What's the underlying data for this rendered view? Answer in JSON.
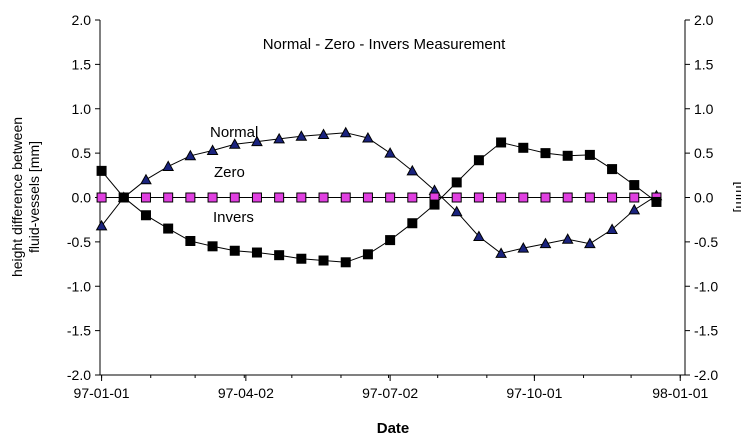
{
  "chart_data": {
    "type": "line",
    "title": "Normal - Zero - Invers Measurement",
    "xlabel": "Date",
    "ylabel_left": [
      "height difference between",
      "fluid-vessels [mm]"
    ],
    "ylabel_right": "[mm]",
    "ylim": [
      -2.0,
      2.0
    ],
    "yticks": [
      "-2.0",
      "-1.5",
      "-1.0",
      "-0.5",
      "0.0",
      "0.5",
      "1.0",
      "1.5",
      "2.0"
    ],
    "xlim": [
      "1996-12-31",
      "1998-01-04"
    ],
    "xticks": [
      "97-01-01",
      "97-04-02",
      "97-07-02",
      "97-10-01",
      "98-01-01"
    ],
    "grid": false,
    "annotations": [
      "Normal",
      "Zero",
      "Invers"
    ],
    "series": [
      {
        "name": "Normal",
        "marker": "triangle",
        "color": "#1a237e",
        "points": [
          [
            "1997-01-01",
            -0.32
          ],
          [
            "1997-01-15",
            0.0
          ],
          [
            "1997-01-29",
            0.2
          ],
          [
            "1997-02-12",
            0.35
          ],
          [
            "1997-02-26",
            0.47
          ],
          [
            "1997-03-12",
            0.53
          ],
          [
            "1997-03-26",
            0.6
          ],
          [
            "1997-04-09",
            0.63
          ],
          [
            "1997-04-23",
            0.66
          ],
          [
            "1997-05-07",
            0.69
          ],
          [
            "1997-05-21",
            0.71
          ],
          [
            "1997-06-04",
            0.73
          ],
          [
            "1997-06-18",
            0.67
          ],
          [
            "1997-07-02",
            0.5
          ],
          [
            "1997-07-16",
            0.3
          ],
          [
            "1997-07-30",
            0.08
          ],
          [
            "1997-08-13",
            -0.16
          ],
          [
            "1997-08-27",
            -0.44
          ],
          [
            "1997-09-10",
            -0.63
          ],
          [
            "1997-09-24",
            -0.57
          ],
          [
            "1997-10-08",
            -0.52
          ],
          [
            "1997-10-22",
            -0.47
          ],
          [
            "1997-11-05",
            -0.52
          ],
          [
            "1997-11-19",
            -0.36
          ],
          [
            "1997-12-03",
            -0.14
          ],
          [
            "1997-12-17",
            0.02
          ]
        ]
      },
      {
        "name": "Zero",
        "marker": "square",
        "color": "#e040e0",
        "points": [
          [
            "1997-01-01",
            0.0
          ],
          [
            "1997-01-15",
            0.0
          ],
          [
            "1997-01-29",
            0.0
          ],
          [
            "1997-02-12",
            0.0
          ],
          [
            "1997-02-26",
            0.0
          ],
          [
            "1997-03-12",
            0.0
          ],
          [
            "1997-03-26",
            0.0
          ],
          [
            "1997-04-09",
            0.0
          ],
          [
            "1997-04-23",
            0.0
          ],
          [
            "1997-05-07",
            0.0
          ],
          [
            "1997-05-21",
            0.0
          ],
          [
            "1997-06-04",
            0.0
          ],
          [
            "1997-06-18",
            0.0
          ],
          [
            "1997-07-02",
            0.0
          ],
          [
            "1997-07-16",
            0.0
          ],
          [
            "1997-07-30",
            0.0
          ],
          [
            "1997-08-13",
            0.0
          ],
          [
            "1997-08-27",
            0.0
          ],
          [
            "1997-09-10",
            0.0
          ],
          [
            "1997-09-24",
            0.0
          ],
          [
            "1997-10-08",
            0.0
          ],
          [
            "1997-10-22",
            0.0
          ],
          [
            "1997-11-05",
            0.0
          ],
          [
            "1997-11-19",
            0.0
          ],
          [
            "1997-12-03",
            0.0
          ],
          [
            "1997-12-17",
            0.0
          ]
        ]
      },
      {
        "name": "Invers",
        "marker": "square",
        "color": "#000000",
        "points": [
          [
            "1997-01-01",
            0.3
          ],
          [
            "1997-01-15",
            0.0
          ],
          [
            "1997-01-29",
            -0.2
          ],
          [
            "1997-02-12",
            -0.35
          ],
          [
            "1997-02-26",
            -0.49
          ],
          [
            "1997-03-12",
            -0.55
          ],
          [
            "1997-03-26",
            -0.6
          ],
          [
            "1997-04-09",
            -0.62
          ],
          [
            "1997-04-23",
            -0.65
          ],
          [
            "1997-05-07",
            -0.69
          ],
          [
            "1997-05-21",
            -0.71
          ],
          [
            "1997-06-04",
            -0.73
          ],
          [
            "1997-06-18",
            -0.64
          ],
          [
            "1997-07-02",
            -0.48
          ],
          [
            "1997-07-16",
            -0.29
          ],
          [
            "1997-07-30",
            -0.08
          ],
          [
            "1997-08-13",
            0.17
          ],
          [
            "1997-08-27",
            0.42
          ],
          [
            "1997-09-10",
            0.62
          ],
          [
            "1997-09-24",
            0.56
          ],
          [
            "1997-10-08",
            0.5
          ],
          [
            "1997-10-22",
            0.47
          ],
          [
            "1997-11-05",
            0.48
          ],
          [
            "1997-11-19",
            0.32
          ],
          [
            "1997-12-03",
            0.14
          ],
          [
            "1997-12-17",
            -0.05
          ]
        ]
      }
    ]
  }
}
